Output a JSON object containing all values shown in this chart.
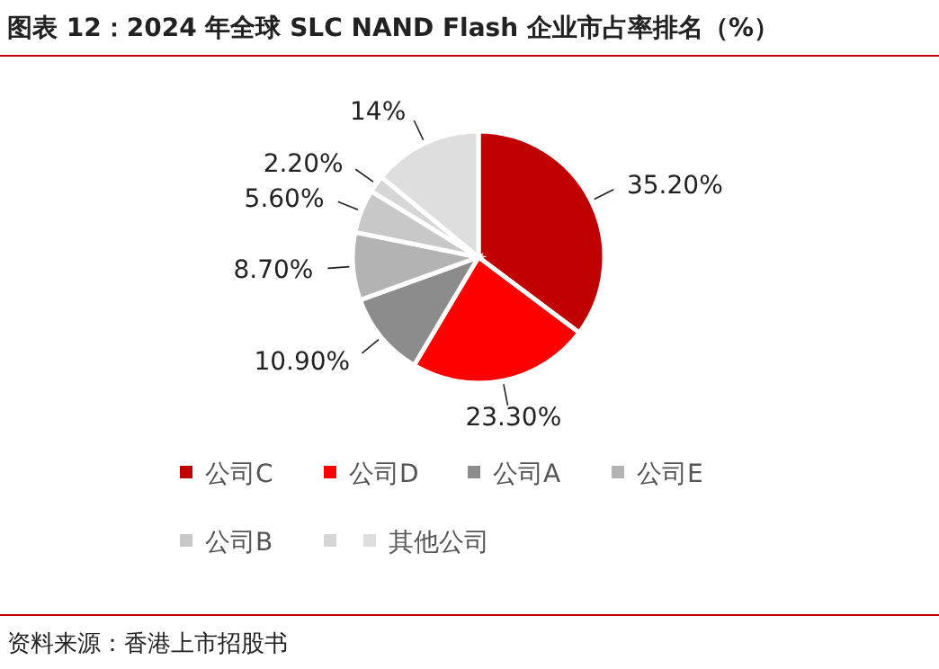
{
  "chart_data": {
    "type": "pie",
    "title": "图表 12：2024 年全球 SLC NAND Flash 企业市占率排名（%）",
    "categories": [
      "公司C",
      "公司D",
      "公司A",
      "公司E",
      "公司B",
      null,
      "其他公司"
    ],
    "values": [
      35.2,
      23.3,
      10.9,
      8.7,
      5.6,
      2.2,
      14
    ],
    "value_labels": [
      "35.20%",
      "23.30%",
      "10.90%",
      "8.70%",
      "5.60%",
      "2.20%",
      "14%"
    ],
    "colors": [
      "#c00000",
      "#ff0000",
      "#8c8c8c",
      "#b3b3b3",
      "#c8c8c8",
      "#d6d6d6",
      "#dedede"
    ],
    "legend": "bottom",
    "annotations": [
      "资料来源：香港上市招股书"
    ]
  }
}
